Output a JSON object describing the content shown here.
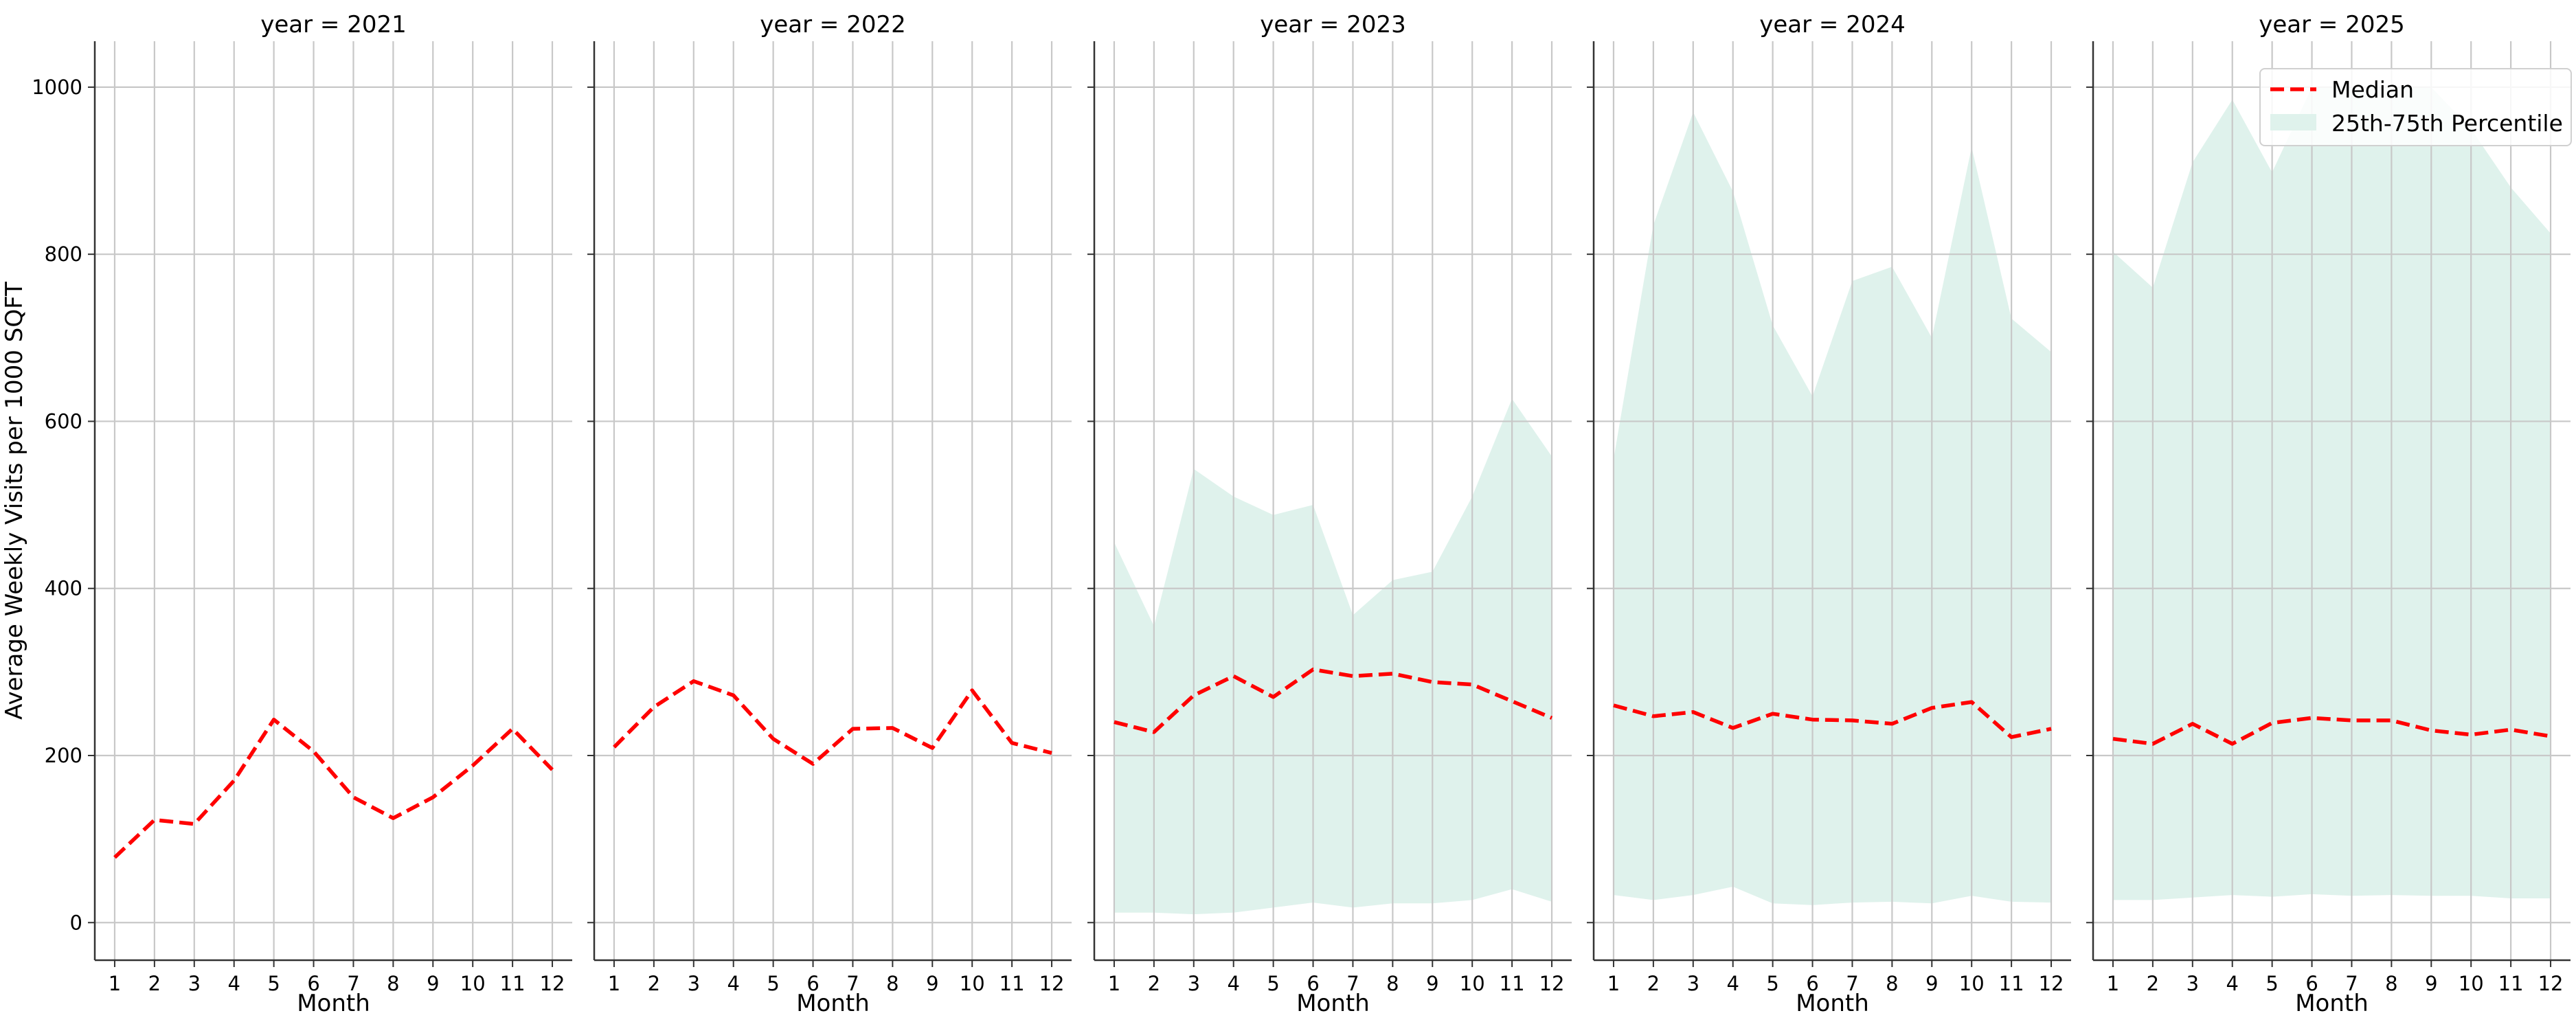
{
  "chart_data": {
    "type": "line",
    "ylabel": "Average Weekly Visits per 1000 SQFT",
    "xlabel": "Month",
    "ylim": [
      -45,
      1055
    ],
    "xlim": [
      0.5,
      12.5
    ],
    "x": [
      1,
      2,
      3,
      4,
      5,
      6,
      7,
      8,
      9,
      10,
      11,
      12
    ],
    "yticks": [
      0,
      200,
      400,
      600,
      800,
      1000
    ],
    "grid": true,
    "legend": {
      "placement": "top-right",
      "median_label": "Median",
      "band_label": "25th-75th Percentile"
    },
    "colors": {
      "median": "#ff0000",
      "band": "#dff2ec",
      "grid": "#c8c8c8",
      "axis": "#333333"
    },
    "panels": [
      {
        "title": "year = 2021",
        "median": [
          78,
          123,
          118,
          170,
          243,
          205,
          150,
          125,
          150,
          188,
          232,
          183
        ]
      },
      {
        "title": "year = 2022",
        "median": [
          210,
          258,
          289,
          272,
          220,
          190,
          232,
          233,
          209,
          278,
          215,
          203
        ]
      },
      {
        "title": "year = 2023",
        "median": [
          240,
          228,
          272,
          295,
          270,
          303,
          295,
          298,
          288,
          285,
          265,
          245
        ],
        "p25": [
          12,
          12,
          10,
          12,
          18,
          24,
          18,
          23,
          23,
          27,
          40,
          25
        ],
        "p75": [
          455,
          355,
          543,
          510,
          488,
          500,
          368,
          410,
          420,
          510,
          627,
          558
        ]
      },
      {
        "title": "year = 2024",
        "median": [
          260,
          247,
          252,
          233,
          250,
          243,
          242,
          238,
          257,
          264,
          222,
          232
        ],
        "p25": [
          33,
          27,
          33,
          43,
          23,
          21,
          24,
          25,
          23,
          32,
          25,
          24
        ],
        "p75": [
          555,
          835,
          970,
          875,
          715,
          630,
          768,
          785,
          700,
          928,
          723,
          683
        ]
      },
      {
        "title": "year = 2025",
        "median": [
          220,
          214,
          238,
          214,
          239,
          245,
          242,
          242,
          230,
          225,
          231,
          223
        ],
        "p25": [
          27,
          27,
          30,
          33,
          31,
          34,
          32,
          33,
          32,
          32,
          29,
          29
        ],
        "p75": [
          803,
          760,
          910,
          985,
          898,
          1000,
          1000,
          1000,
          1000,
          950,
          880,
          825
        ]
      }
    ]
  }
}
